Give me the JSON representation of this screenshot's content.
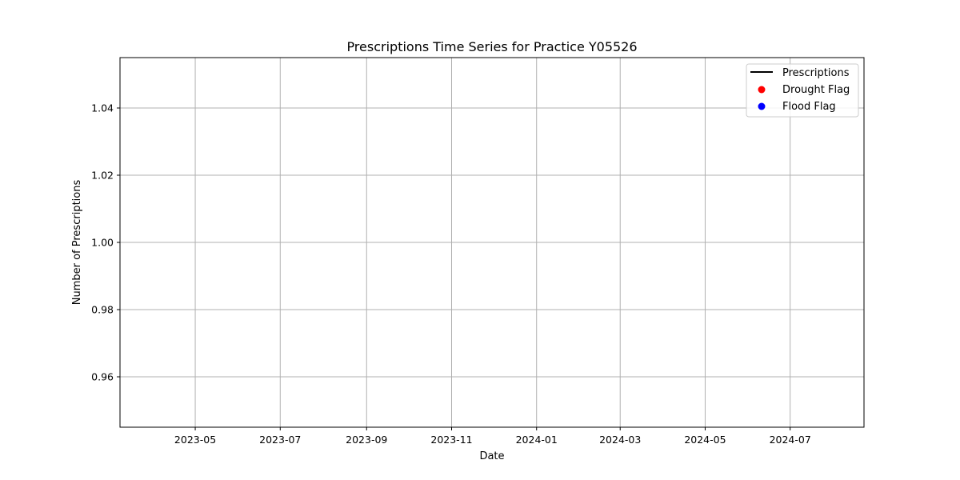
{
  "chart_data": {
    "type": "line",
    "title": "Prescriptions Time Series for Practice Y05526",
    "xlabel": "Date",
    "ylabel": "Number of Prescriptions",
    "x_axis_type": "date",
    "xlim": [
      "2023-03-08",
      "2024-08-23"
    ],
    "ylim": [
      0.945,
      1.055
    ],
    "x_ticks": [
      {
        "value": "2023-05-01",
        "label": "2023-05"
      },
      {
        "value": "2023-07-01",
        "label": "2023-07"
      },
      {
        "value": "2023-09-01",
        "label": "2023-09"
      },
      {
        "value": "2023-11-01",
        "label": "2023-11"
      },
      {
        "value": "2024-01-01",
        "label": "2024-01"
      },
      {
        "value": "2024-03-01",
        "label": "2024-03"
      },
      {
        "value": "2024-05-01",
        "label": "2024-05"
      },
      {
        "value": "2024-07-01",
        "label": "2024-07"
      }
    ],
    "y_ticks": [
      {
        "value": 0.96,
        "label": "0.96"
      },
      {
        "value": 0.98,
        "label": "0.98"
      },
      {
        "value": 1.0,
        "label": "1.00"
      },
      {
        "value": 1.02,
        "label": "1.02"
      },
      {
        "value": 1.04,
        "label": "1.04"
      }
    ],
    "grid": true,
    "legend_position": "top-right",
    "series": [
      {
        "name": "Prescriptions",
        "kind": "line",
        "color": "#000000",
        "points": []
      },
      {
        "name": "Drought Flag",
        "kind": "scatter",
        "color": "#ff0000",
        "points": []
      },
      {
        "name": "Flood Flag",
        "kind": "scatter",
        "color": "#0000ff",
        "points": []
      }
    ]
  }
}
